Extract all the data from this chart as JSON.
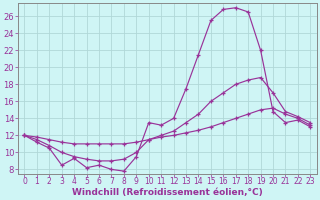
{
  "background_color": "#cff5f5",
  "grid_color": "#b0d8d8",
  "line_color": "#993399",
  "xlabel": "Windchill (Refroidissement éolien,°C)",
  "xlabel_fontsize": 6.5,
  "xtick_fontsize": 5.5,
  "ytick_fontsize": 6.0,
  "xlim": [
    -0.5,
    23.5
  ],
  "ylim": [
    7.5,
    27.5
  ],
  "yticks": [
    8,
    10,
    12,
    14,
    16,
    18,
    20,
    22,
    24,
    26
  ],
  "xticks": [
    0,
    1,
    2,
    3,
    4,
    5,
    6,
    7,
    8,
    9,
    10,
    11,
    12,
    13,
    14,
    15,
    16,
    17,
    18,
    19,
    20,
    21,
    22,
    23
  ],
  "series": [
    {
      "x": [
        0,
        1,
        2,
        3,
        4,
        5,
        6,
        7,
        8,
        9,
        10,
        11,
        12,
        13,
        14,
        15,
        16,
        17,
        18,
        19,
        20,
        21,
        22,
        23
      ],
      "y": [
        12.0,
        11.2,
        10.5,
        8.5,
        9.3,
        8.2,
        8.5,
        8.0,
        7.8,
        9.5,
        13.5,
        13.2,
        14.0,
        17.5,
        21.5,
        25.5,
        26.8,
        27.0,
        26.5,
        22.0,
        14.8,
        13.5,
        13.8,
        13.0
      ]
    },
    {
      "x": [
        0,
        1,
        2,
        3,
        4,
        5,
        6,
        7,
        8,
        9,
        10,
        11,
        12,
        13,
        14,
        15,
        16,
        17,
        18,
        19,
        20,
        21,
        22,
        23
      ],
      "y": [
        12.0,
        11.5,
        10.8,
        10.0,
        9.5,
        9.2,
        9.0,
        9.0,
        9.2,
        10.0,
        11.5,
        12.0,
        12.5,
        13.5,
        14.5,
        16.0,
        17.0,
        18.0,
        18.5,
        18.8,
        17.0,
        14.8,
        14.2,
        13.5
      ]
    },
    {
      "x": [
        0,
        1,
        2,
        3,
        4,
        5,
        6,
        7,
        8,
        9,
        10,
        11,
        12,
        13,
        14,
        15,
        16,
        17,
        18,
        19,
        20,
        21,
        22,
        23
      ],
      "y": [
        12.0,
        11.8,
        11.5,
        11.2,
        11.0,
        11.0,
        11.0,
        11.0,
        11.0,
        11.2,
        11.5,
        11.8,
        12.0,
        12.3,
        12.6,
        13.0,
        13.5,
        14.0,
        14.5,
        15.0,
        15.2,
        14.5,
        14.0,
        13.2
      ]
    }
  ]
}
